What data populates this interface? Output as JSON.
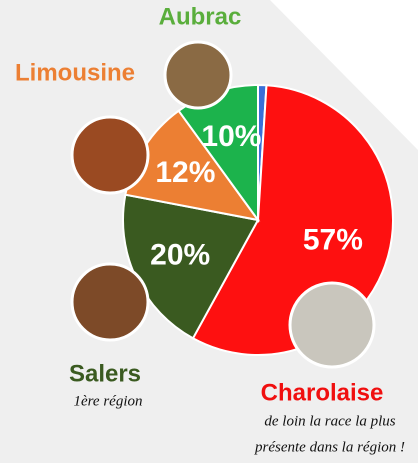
{
  "chart_data": {
    "type": "pie",
    "categories": [
      "Charolaise",
      "Salers",
      "Limousine",
      "Aubrac",
      null
    ],
    "values": [
      57,
      20,
      12,
      10,
      1
    ],
    "value_labels": [
      "57%",
      "20%",
      "12%",
      "10%",
      null
    ],
    "colors": [
      "#fe1010",
      "#3a5a20",
      "#ec7f33",
      "#1cb34c",
      "#3a6fd8"
    ],
    "label_colors": [
      "#f00f0f",
      "#3a5a20",
      "#ec7f33",
      "#5aae3c",
      null
    ],
    "annotations": [
      "1ère région",
      "de loin la race la plus",
      "présente dans la région !"
    ]
  }
}
